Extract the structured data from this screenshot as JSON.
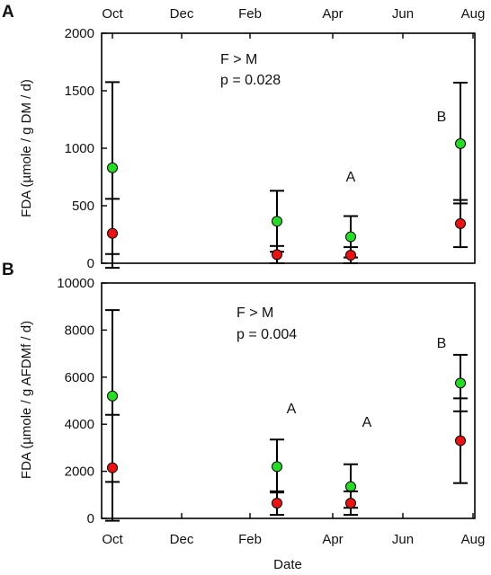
{
  "chart_data": [
    {
      "panel_label": "A",
      "type": "scatter",
      "ylabel": "FDA (µmole / g DM / d)",
      "ylim": [
        0,
        2000
      ],
      "yticks": [
        0,
        500,
        1000,
        1500,
        2000
      ],
      "xtick_labels": [
        "Oct",
        "Dec",
        "Feb",
        "Apr",
        "Jun",
        "Aug"
      ],
      "xtick_position": "top",
      "colors": {
        "green_series": "#22dd22",
        "red_series": "#ee1111"
      },
      "series": [
        {
          "points": [
            {
              "x": "Oct",
              "y": 830,
              "low": 80,
              "high": 1575
            },
            {
              "x": "Feb",
              "y": 365,
              "low": 100,
              "high": 630
            },
            {
              "x": "Apr",
              "y": 230,
              "low": 50,
              "high": 410
            },
            {
              "x": "Aug",
              "y": 1040,
              "low": 520,
              "high": 1570
            }
          ]
        },
        {
          "points": [
            {
              "x": "Oct",
              "y": 260,
              "low": -40,
              "high": 560
            },
            {
              "x": "Feb",
              "y": 75,
              "low": 0,
              "high": 150
            },
            {
              "x": "Apr",
              "y": 70,
              "low": 0,
              "high": 140
            },
            {
              "x": "Aug",
              "y": 345,
              "low": 140,
              "high": 550
            }
          ]
        }
      ],
      "annotations": [
        "F > M",
        "p = 0.028",
        "A",
        "B"
      ]
    },
    {
      "panel_label": "B",
      "type": "scatter",
      "ylabel": "FDA (µmole / g AFDMf / d)",
      "xlabel": "Date",
      "ylim": [
        0,
        10000
      ],
      "yticks": [
        0,
        2000,
        4000,
        6000,
        8000,
        10000
      ],
      "xtick_labels": [
        "Oct",
        "Dec",
        "Feb",
        "Apr",
        "Jun",
        "Aug"
      ],
      "xtick_position": "bottom",
      "colors": {
        "green_series": "#22dd22",
        "red_series": "#ee1111"
      },
      "series": [
        {
          "points": [
            {
              "x": "Oct",
              "y": 5200,
              "low": 1550,
              "high": 8850
            },
            {
              "x": "Feb",
              "y": 2200,
              "low": 1100,
              "high": 3350
            },
            {
              "x": "Apr",
              "y": 1350,
              "low": 450,
              "high": 2300
            },
            {
              "x": "Aug",
              "y": 5750,
              "low": 4550,
              "high": 6950
            }
          ]
        },
        {
          "points": [
            {
              "x": "Oct",
              "y": 2150,
              "low": -100,
              "high": 4400
            },
            {
              "x": "Feb",
              "y": 650,
              "low": 150,
              "high": 1150
            },
            {
              "x": "Apr",
              "y": 650,
              "low": 150,
              "high": 1150
            },
            {
              "x": "Aug",
              "y": 3300,
              "low": 1500,
              "high": 5100
            }
          ]
        }
      ],
      "annotations": [
        "F > M",
        "p = 0.004",
        "A",
        "A",
        "B"
      ]
    }
  ]
}
